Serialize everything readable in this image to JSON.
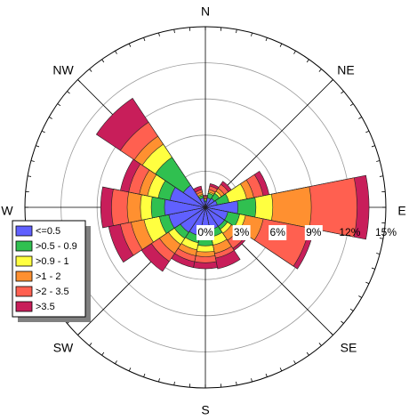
{
  "chart_data": {
    "type": "wind-rose",
    "radial_unit": "%",
    "radial_max": 15,
    "ring_ticks": [
      {
        "value": 0,
        "label": "0%"
      },
      {
        "value": 3,
        "label": "3%"
      },
      {
        "value": 6,
        "label": "6%"
      },
      {
        "value": 9,
        "label": "9%"
      },
      {
        "value": 12,
        "label": "12%"
      },
      {
        "value": 15,
        "label": "15%"
      }
    ],
    "directions": [
      "N",
      "NE",
      "E",
      "SE",
      "S",
      "SW",
      "W",
      "NW"
    ],
    "legend_position": "left",
    "colors": [
      "#6060ff",
      "#30c050",
      "#ffff40",
      "#ff9030",
      "#ff6050",
      "#c81e5a"
    ],
    "series": [
      {
        "name": "<=0.5",
        "color": "#6060ff"
      },
      {
        "name": ">0.5 - 0.9",
        "color": "#30c050"
      },
      {
        "name": ">0.9 - 1",
        "color": "#ffff40"
      },
      {
        "name": ">1 - 2",
        "color": "#ff9030"
      },
      {
        "name": ">2 - 3.5",
        "color": "#ff6050"
      },
      {
        "name": ">3.5",
        "color": "#c81e5a"
      }
    ],
    "sectors": [
      {
        "direction_deg": 0,
        "cumulative": [
          0.5,
          0.6,
          0.7,
          0.8,
          0.9,
          1.0
        ]
      },
      {
        "direction_deg": 22.5,
        "cumulative": [
          0.8,
          1.2,
          1.3,
          1.5,
          1.8,
          2.0
        ]
      },
      {
        "direction_deg": 45,
        "cumulative": [
          0.9,
          1.4,
          1.6,
          1.9,
          2.3,
          2.6
        ]
      },
      {
        "direction_deg": 67.5,
        "cumulative": [
          1.0,
          2.0,
          3.5,
          4.1,
          4.9,
          5.4
        ]
      },
      {
        "direction_deg": 90,
        "cumulative": [
          2.7,
          4.2,
          5.6,
          8.8,
          12.6,
          13.6
        ]
      },
      {
        "direction_deg": 112.5,
        "cumulative": [
          1.9,
          2.9,
          3.4,
          4.9,
          8.8,
          9.2
        ]
      },
      {
        "direction_deg": 135,
        "cumulative": [
          1.9,
          2.2,
          2.6,
          3.3,
          4.1,
          4.3
        ]
      },
      {
        "direction_deg": 157.5,
        "cumulative": [
          1.9,
          2.5,
          3.2,
          3.9,
          4.3,
          5.2
        ]
      },
      {
        "direction_deg": 180,
        "cumulative": [
          2.5,
          3.2,
          3.7,
          4.1,
          4.6,
          5.1
        ]
      },
      {
        "direction_deg": 202.5,
        "cumulative": [
          2.4,
          3.0,
          3.6,
          4.1,
          4.6,
          5.1
        ]
      },
      {
        "direction_deg": 225,
        "cumulative": [
          2.5,
          3.1,
          3.7,
          4.6,
          5.4,
          6.4
        ]
      },
      {
        "direction_deg": 247.5,
        "cumulative": [
          3.1,
          3.9,
          5.2,
          6.3,
          7.2,
          8.2
        ]
      },
      {
        "direction_deg": 270,
        "cumulative": [
          3.4,
          4.5,
          5.4,
          6.5,
          7.8,
          8.7
        ]
      },
      {
        "direction_deg": 292.5,
        "cumulative": [
          3.0,
          4.0,
          4.9,
          5.6,
          6.5,
          7.2
        ]
      },
      {
        "direction_deg": 315,
        "cumulative": [
          2.2,
          5.0,
          6.3,
          7.1,
          8.5,
          10.9
        ]
      },
      {
        "direction_deg": 337.5,
        "cumulative": [
          0.8,
          1.0,
          1.1,
          1.3,
          1.5,
          1.8
        ]
      }
    ]
  }
}
